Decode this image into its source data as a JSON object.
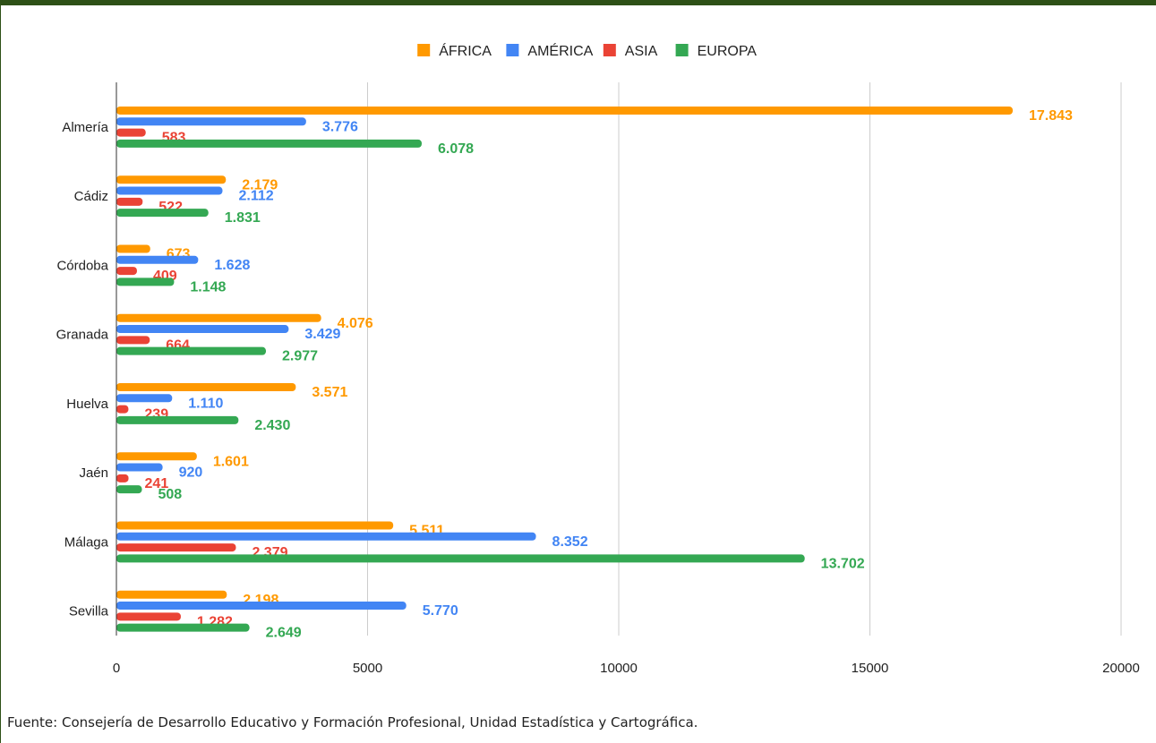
{
  "chart_data": {
    "type": "bar",
    "orientation": "horizontal",
    "categories": [
      "Almería",
      "Cádiz",
      "Córdoba",
      "Granada",
      "Huelva",
      "Jaén",
      "Málaga",
      "Sevilla"
    ],
    "series": [
      {
        "name": "ÁFRICA",
        "color": "#ff9900",
        "values": [
          17843,
          2179,
          673,
          4076,
          3571,
          1601,
          5511,
          2198
        ],
        "labels": [
          "17.843",
          "2.179",
          "673",
          "4.076",
          "3.571",
          "1.601",
          "5.511",
          "2.198"
        ]
      },
      {
        "name": "AMÉRICA",
        "color": "#4285f4",
        "values": [
          3776,
          2112,
          1628,
          3429,
          1110,
          920,
          8352,
          5770
        ],
        "labels": [
          "3.776",
          "2.112",
          "1.628",
          "3.429",
          "1.110",
          "920",
          "8.352",
          "5.770"
        ]
      },
      {
        "name": "ASIA",
        "color": "#ea4335",
        "values": [
          583,
          522,
          409,
          664,
          239,
          241,
          2379,
          1282
        ],
        "labels": [
          "583",
          "522",
          "409",
          "664",
          "239",
          "241",
          "2.379",
          "1.282"
        ]
      },
      {
        "name": "EUROPA",
        "color": "#34a853",
        "values": [
          6078,
          1831,
          1148,
          2977,
          2430,
          508,
          13702,
          2649
        ],
        "labels": [
          "6.078",
          "1.831",
          "1.148",
          "2.977",
          "2.430",
          "508",
          "13.702",
          "2.649"
        ]
      }
    ],
    "xlim": [
      0,
      20000
    ],
    "xticks": [
      0,
      5000,
      10000,
      15000,
      20000
    ],
    "xtick_labels": [
      "0",
      "5000",
      "10000",
      "15000",
      "20000"
    ],
    "grid": true,
    "legend_position": "top-center"
  },
  "source_note": "Fuente: Consejería de Desarrollo Educativo y Formación Profesional, Unidad Estadística y Cartográfica."
}
